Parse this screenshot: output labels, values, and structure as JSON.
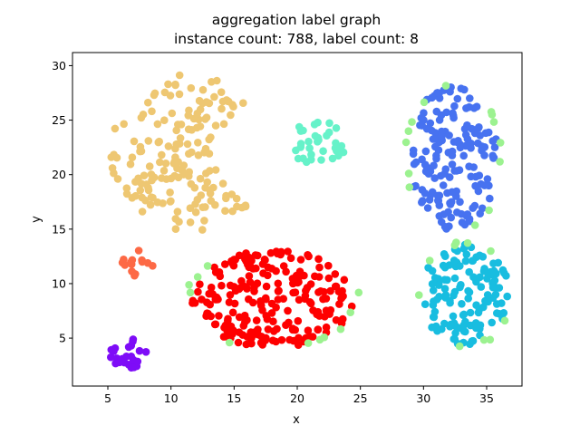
{
  "chart_data": {
    "type": "scatter",
    "title_lines": [
      "aggregation label graph",
      "instance count: 788, label count: 8"
    ],
    "xlabel": "x",
    "ylabel": "y",
    "xlim": [
      2.2,
      37.8
    ],
    "ylim": [
      0.6,
      31.2
    ],
    "xticks": [
      5,
      10,
      15,
      20,
      25,
      30,
      35
    ],
    "yticks": [
      5,
      10,
      15,
      20,
      25,
      30
    ],
    "grid": false,
    "legend": "none",
    "point_count": 788,
    "clusters": [
      {
        "color": "#eec772",
        "shape": "crescent",
        "count": 170,
        "center": [
          11.5,
          22.0
        ],
        "radius": [
          6.3,
          7.2
        ]
      },
      {
        "color": "#66f2c9",
        "shape": "ellipse",
        "count": 34,
        "center": [
          21.8,
          22.9
        ],
        "radius": [
          2.5,
          2.0
        ]
      },
      {
        "color": "#4772f0",
        "shape": "ellipse",
        "count": 160,
        "center": [
          32.4,
          21.5
        ],
        "radius": [
          3.6,
          6.7
        ]
      },
      {
        "color": "#18bde0",
        "shape": "ellipse",
        "count": 128,
        "center": [
          33.3,
          9.0
        ],
        "radius": [
          3.5,
          4.6
        ]
      },
      {
        "color": "#fe0000",
        "shape": "ellipse",
        "count": 222,
        "center": [
          18.0,
          8.6
        ],
        "radius": [
          6.4,
          4.5
        ]
      },
      {
        "color": "#fd6945",
        "shape": "ellipse",
        "count": 14,
        "center": [
          7.3,
          11.9
        ],
        "radius": [
          1.3,
          1.2
        ]
      },
      {
        "color": "#7e0cf7",
        "shape": "ellipse",
        "count": 25,
        "center": [
          6.5,
          3.6
        ],
        "radius": [
          1.6,
          1.5
        ]
      },
      {
        "color": "#9cf290",
        "shape": "ring",
        "count": 35
      }
    ]
  }
}
